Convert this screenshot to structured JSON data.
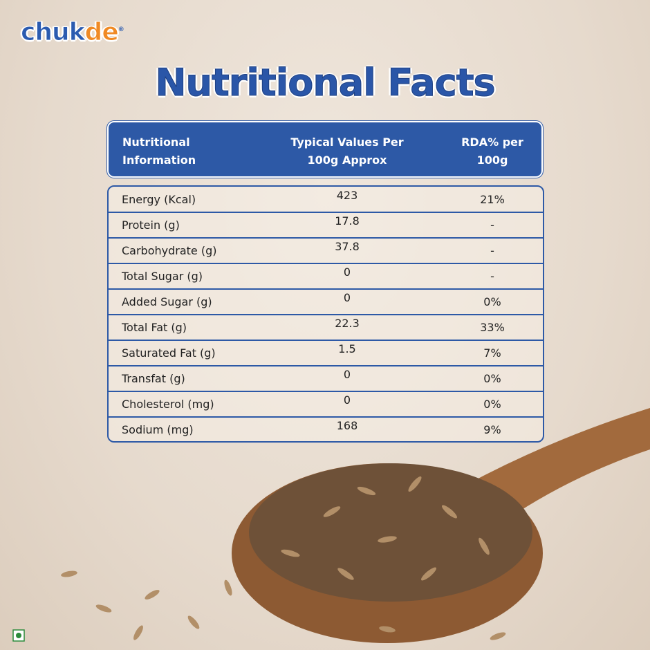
{
  "logo": {
    "parts": [
      "chuk",
      "de"
    ],
    "mark": "®"
  },
  "title": "Nutritional Facts",
  "table": {
    "header": [
      "Nutritional Information",
      "Typical Values Per 100g Approx",
      "RDA% per 100g"
    ],
    "rows": [
      [
        "Energy (Kcal)",
        "423",
        "21%"
      ],
      [
        "Protein (g)",
        "17.8",
        "-"
      ],
      [
        "Carbohydrate (g)",
        "37.8",
        "-"
      ],
      [
        "Total Sugar (g)",
        "0",
        "-"
      ],
      [
        "Added Sugar (g)",
        "0",
        "0%"
      ],
      [
        "Total Fat (g)",
        "22.3",
        "33%"
      ],
      [
        "Saturated Fat (g)",
        "1.5",
        "7%"
      ],
      [
        "Transfat (g)",
        "0",
        "0%"
      ],
      [
        "Cholesterol (mg)",
        "0",
        "0%"
      ],
      [
        "Sodium (mg)",
        "168",
        "9%"
      ]
    ]
  }
}
